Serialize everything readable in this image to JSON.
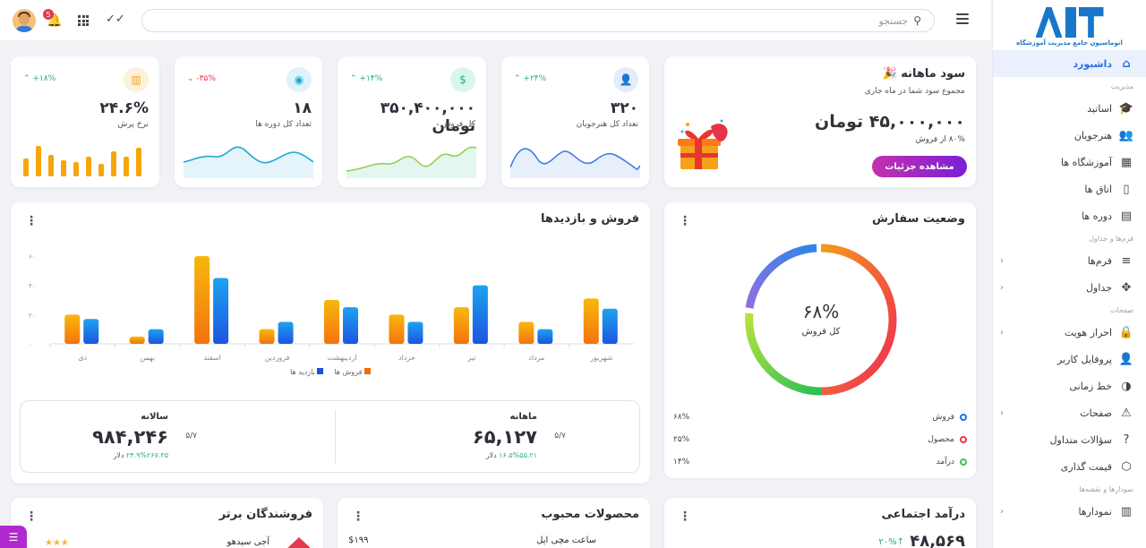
{
  "topbar": {
    "search_placeholder": "جستجو",
    "notification_count": "5"
  },
  "sidebar": {
    "logo_caption": "اتوماسیون جامع مدیریت آموزشگاه",
    "items": [
      {
        "label": "داشبورد",
        "icon": "home-icon",
        "active": true
      },
      {
        "section": "مدیریت"
      },
      {
        "label": "اساتید",
        "icon": "graduation-cap-icon"
      },
      {
        "label": "هنرجویان",
        "icon": "users-icon"
      },
      {
        "label": "آموزشگاه ها",
        "icon": "store-icon"
      },
      {
        "label": "اتاق ها",
        "icon": "door-icon"
      },
      {
        "label": "دوره ها",
        "icon": "book-icon"
      },
      {
        "section": "فرم‌ها و جداول"
      },
      {
        "label": "فرم‌ها",
        "icon": "list-icon",
        "chevron": true
      },
      {
        "label": "جداول",
        "icon": "grid-icon",
        "chevron": true
      },
      {
        "section": "صفحات"
      },
      {
        "label": "احراز هویت",
        "icon": "lock-icon",
        "chevron": true
      },
      {
        "label": "پروفایل کاربر",
        "icon": "user-icon"
      },
      {
        "label": "خط زمانی",
        "icon": "toggle-icon"
      },
      {
        "label": "صفحات",
        "icon": "warning-icon",
        "chevron": true
      },
      {
        "label": "سؤالات متداول",
        "icon": "help-icon"
      },
      {
        "label": "قیمت گذاری",
        "icon": "tag-icon"
      },
      {
        "section": "نمودارها و نقشه‌ها"
      },
      {
        "label": "نمودارها",
        "icon": "chart-icon",
        "chevron": true
      }
    ]
  },
  "profit_card": {
    "title": "سود ماهانه",
    "subtitle": "مجموع سود شما در ماه جاری",
    "amount": "۴۵,۰۰۰,۰۰۰ تومان",
    "sales_share": "۸۰% از فروش",
    "button": "مشاهده جزئیات"
  },
  "stats": [
    {
      "label": "تعداد کل هنرجویان",
      "value": "۳۲۰",
      "trend": "+۲۴%",
      "dir": "up",
      "icon": "user-icon",
      "color": "#3d7be0",
      "bg": "#e3ecfb"
    },
    {
      "label": "کل فروش",
      "value": "۳۵۰,۴۰۰,۰۰۰ تومان",
      "trend": "+۱۴%",
      "dir": "up",
      "icon": "dollar-icon",
      "color": "#21b37a",
      "bg": "#dcf5ea"
    },
    {
      "label": "تعداد کل دوره ها",
      "value": "۱۸",
      "trend": "-۳۵%",
      "dir": "down",
      "icon": "eye-icon",
      "color": "#1fa8d6",
      "bg": "#ddf2fa"
    },
    {
      "label": "نرخ پرش",
      "value": "۲۴.۶%",
      "trend": "+۱۸%",
      "dir": "up",
      "icon": "bar-chart-icon",
      "color": "#f2a422",
      "bg": "#fdf1dc"
    }
  ],
  "sales_card": {
    "title": "فروش و بازدیدها",
    "monthly_label": "ماهانه",
    "monthly_value": "۶۵,۱۲۷",
    "monthly_change": "۵/۷",
    "monthly_sub": "۱۶.۵%۵۵.۲۱",
    "monthly_unit": "دلار",
    "yearly_label": "سالانه",
    "yearly_value": "۹۸۴,۲۴۶",
    "yearly_change": "۵/۷",
    "yearly_sub": "۲۴.۹%۲۶۷.۳۵",
    "yearly_unit": "دلار"
  },
  "chart_data": {
    "type": "bar",
    "categories": [
      "شهریور",
      "مرداد",
      "تیر",
      "خرداد",
      "اردیبهشت",
      "فروردین",
      "اسفند",
      "بهمن",
      "دی"
    ],
    "series": [
      {
        "name": "فروش ها",
        "values": [
          31,
          15,
          25,
          20,
          30,
          10,
          60,
          5,
          20
        ],
        "color": "#f6a60a"
      },
      {
        "name": "بازدید ها",
        "values": [
          24,
          10,
          40,
          15,
          25,
          15,
          45,
          10,
          17
        ],
        "color": "#1e6ff0"
      }
    ],
    "yticks": [
      "۰",
      "۲۰",
      "۴۰",
      "۶۰"
    ],
    "ylim": [
      0,
      60
    ]
  },
  "order_card": {
    "title": "وضعیت سفارش",
    "center_value": "۶۸%",
    "center_label": "کل فروش",
    "legend": [
      {
        "label": "فروش",
        "value": "۶۸%",
        "color": "#1e6ff0"
      },
      {
        "label": "محصول",
        "value": "۲۵%",
        "color": "#e53950"
      },
      {
        "label": "درآمد",
        "value": "۱۴%",
        "color": "#3fc34f"
      }
    ]
  },
  "bottom": {
    "top_sellers_title": "فروشندگان برتر",
    "top_seller_name": "آجی سیدهو",
    "popular_title": "محصولات محبوب",
    "popular_item": "ساعت مچی اپل",
    "popular_price": "$۱۹۹",
    "social_title": "درآمد اجتماعی",
    "social_value": "۴۸,۵۶۹",
    "social_change": "۲۰%"
  }
}
